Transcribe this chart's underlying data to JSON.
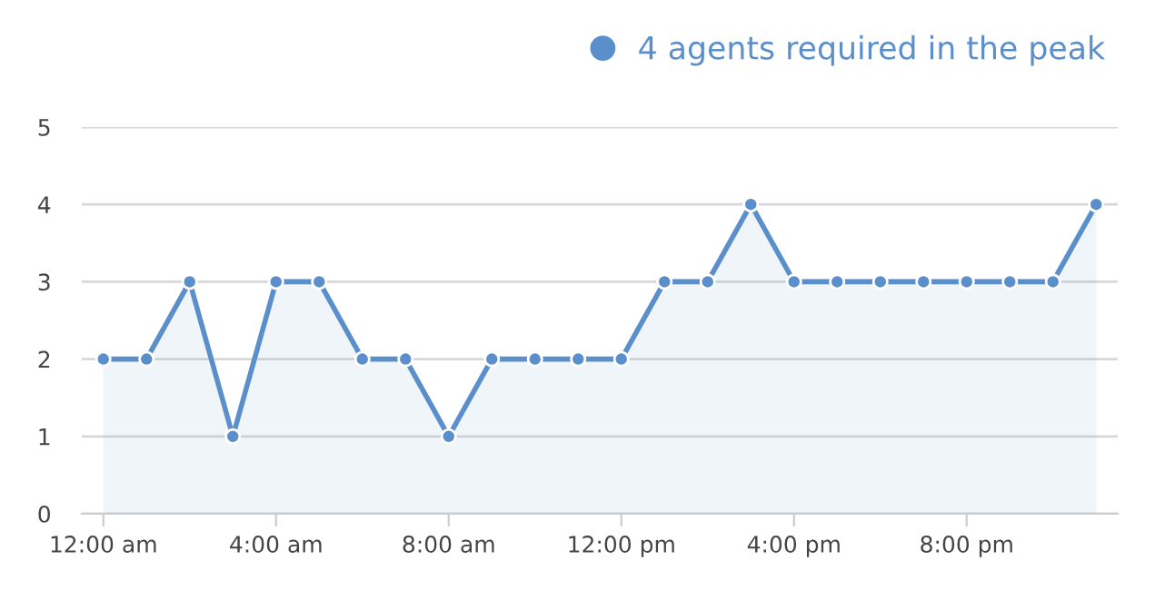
{
  "chart_data": {
    "type": "area",
    "x": [
      0,
      1,
      2,
      3,
      4,
      5,
      6,
      7,
      8,
      9,
      10,
      11,
      12,
      13,
      14,
      15,
      16,
      17,
      18,
      19,
      20,
      21,
      22,
      23
    ],
    "series": [
      {
        "name": "4 agents required in the peak",
        "color": "#5b8fcb",
        "values": [
          2,
          2,
          3,
          1,
          3,
          3,
          2,
          2,
          1,
          2,
          2,
          2,
          2,
          3,
          3,
          4,
          3,
          3,
          3,
          3,
          3,
          3,
          3,
          4
        ]
      }
    ],
    "xlim": [
      -0.5,
      23.5
    ],
    "xticks": [
      {
        "value": 0,
        "label": "12:00 am"
      },
      {
        "value": 4,
        "label": "4:00 am"
      },
      {
        "value": 8,
        "label": "8:00 am"
      },
      {
        "value": 12,
        "label": "12:00 pm"
      },
      {
        "value": 16,
        "label": "4:00 pm"
      },
      {
        "value": 20,
        "label": "8:00 pm"
      }
    ],
    "ylim": [
      0,
      5
    ],
    "yticks": [
      0,
      1,
      2,
      3,
      4,
      5
    ],
    "grid": "y",
    "legend": "top right",
    "marker": "circle",
    "line_style": "solid"
  }
}
